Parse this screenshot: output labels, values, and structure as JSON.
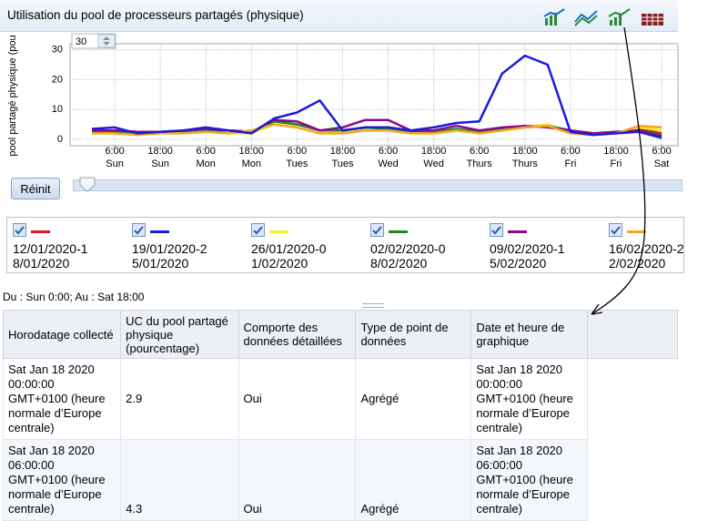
{
  "header": {
    "title": "Utilisation du pool de processeurs partagés (physique)"
  },
  "chart_data": {
    "type": "line",
    "y_label": "pool partagé physique (pou",
    "period_input": "30",
    "x": [
      0,
      6,
      12,
      18,
      24,
      30,
      36,
      42,
      48,
      54,
      60,
      66,
      72,
      78,
      84,
      90,
      96,
      102,
      108,
      114,
      120,
      126,
      132,
      138,
      144,
      150
    ],
    "xlim": [
      -5.75,
      154.3
    ],
    "ylim": [
      0,
      32
    ],
    "yticks": [
      0,
      10,
      20,
      30
    ],
    "xticks": [
      {
        "value": 6,
        "label": "6:00 Sun"
      },
      {
        "value": 18,
        "label": "18:00 Sun"
      },
      {
        "value": 30,
        "label": "6:00 Mon"
      },
      {
        "value": 42,
        "label": "18:00 Mon"
      },
      {
        "value": 54,
        "label": "6:00 Tues"
      },
      {
        "value": 66,
        "label": "18:00 Tues"
      },
      {
        "value": 78,
        "label": "6:00 Wed"
      },
      {
        "value": 90,
        "label": "18:00 Wed"
      },
      {
        "value": 102,
        "label": "6:00 Thurs"
      },
      {
        "value": 114,
        "label": "18:00 Thurs"
      },
      {
        "value": 126,
        "label": "6:00 Fri"
      },
      {
        "value": 138,
        "label": "18:00 Fri"
      },
      {
        "value": 150,
        "label": "6:00 Sat"
      }
    ],
    "grid": true,
    "series": [
      {
        "name": "12/01/2020-18/01/2020",
        "color": "#e8141b",
        "values": [
          2.5,
          3,
          2.5,
          2.5,
          2.5,
          3,
          3,
          2.5,
          6,
          5,
          3,
          3,
          4,
          4,
          3,
          3,
          3,
          3,
          3.5,
          4,
          4.5,
          3,
          2,
          2,
          3.5,
          2
        ]
      },
      {
        "name": "19/01/2020-25/01/2020",
        "color": "#1a1ae0",
        "values": [
          3.5,
          4,
          2,
          2.5,
          3,
          4,
          3,
          2,
          7,
          9,
          13,
          3,
          4,
          4,
          3,
          4,
          5.5,
          6,
          22,
          28,
          25,
          2.5,
          1.5,
          2,
          2.5,
          0.5
        ]
      },
      {
        "name": "26/01/2020-01/02/2020",
        "color": "#f2f21a",
        "values": [
          2,
          2,
          1.5,
          2,
          2,
          2.5,
          2,
          2,
          5,
          4,
          2,
          2,
          3.5,
          3,
          2,
          2,
          3,
          2,
          3,
          4,
          5,
          2,
          1.5,
          2,
          4,
          3
        ]
      },
      {
        "name": "02/02/2020-08/02/2020",
        "color": "#1a8a1a",
        "values": [
          2.5,
          2.5,
          2,
          2.5,
          2.5,
          3,
          3,
          2.5,
          6,
          5,
          3,
          3,
          4,
          3.5,
          2.5,
          2.5,
          3.5,
          2.5,
          3.5,
          4,
          4.5,
          3,
          2,
          2.5,
          3,
          1.5
        ]
      },
      {
        "name": "09/02/2020-15/02/2020",
        "color": "#8b0a8b",
        "values": [
          3,
          3,
          2.5,
          2.5,
          3,
          3.5,
          3,
          2.5,
          6.5,
          6,
          3,
          4,
          6.5,
          6.5,
          3,
          3,
          4.5,
          3,
          4,
          4.5,
          4,
          3,
          2,
          2.5,
          3,
          1
        ]
      },
      {
        "name": "16/02/2020-22/02/2020",
        "color": "#f5a623",
        "values": [
          2,
          2,
          1.5,
          2,
          2,
          2.5,
          2,
          3,
          5,
          4,
          2,
          2,
          3,
          3,
          2,
          2,
          3,
          2,
          3,
          4,
          4.5,
          2,
          1.5,
          2,
          4.5,
          4
        ]
      }
    ]
  },
  "controls": {
    "reset": "Réinit"
  },
  "range_text": "Du : Sun 0:00; Au : Sat 18:00",
  "table": {
    "headers": [
      "Horodatage collecté",
      "UC du pool partagé physique (pourcentage)",
      "Comporte des données détaillées",
      "Type de point de données",
      "Date et heure de graphique"
    ],
    "rows": [
      [
        "Sat Jan 18 2020 00:00:00 GMT+0100 (heure normale d’Europe centrale)",
        "2.9",
        "Oui",
        "Agrégé",
        "Sat Jan 18 2020 00:00:00 GMT+0100 (heure normale d’Europe centrale)"
      ],
      [
        "Sat Jan 18 2020 06:00:00 GMT+0100 (heure normale d’Europe centrale)",
        "4.3",
        "Oui",
        "Agrégé",
        "Sat Jan 18 2020 06:00:00 GMT+0100 (heure normale d’Europe centrale)"
      ]
    ]
  }
}
